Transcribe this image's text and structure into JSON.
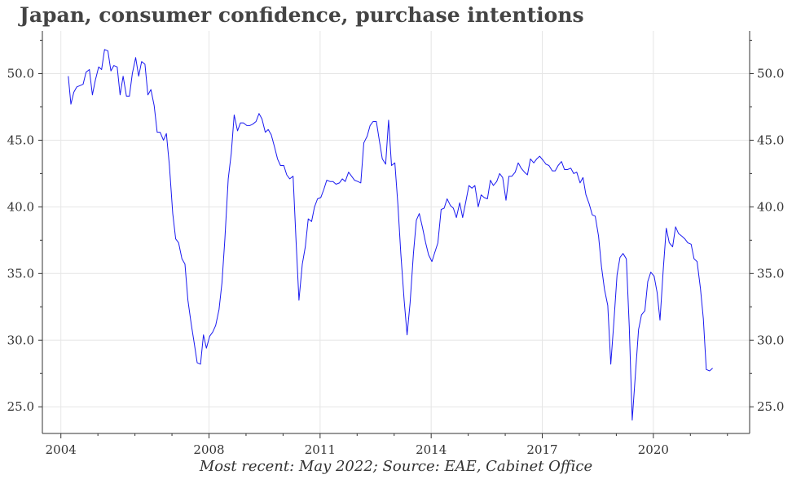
{
  "title": "Japan, consumer confidence, purchase intentions",
  "caption": "Most recent: May 2022; Source: EAE, Cabinet Office",
  "colors": {
    "line": "#1a1af0",
    "grid": "#e6e6e6",
    "axis": "#333333",
    "title": "#444444"
  },
  "chart_data": {
    "type": "line",
    "title": "Japan, consumer confidence, purchase intentions",
    "xlabel": "",
    "ylabel": "",
    "xlim": [
      2003.5,
      2022.6
    ],
    "ylim": [
      23.0,
      53.2
    ],
    "xticks": [
      2004,
      2008,
      2011,
      2014,
      2017,
      2020
    ],
    "x_tick_labels": [
      "2004",
      "2008",
      "2011",
      "2014",
      "2017",
      "2020"
    ],
    "yticks": [
      25.0,
      30.0,
      35.0,
      40.0,
      45.0,
      50.0
    ],
    "y_tick_labels": [
      "25.0",
      "30.0",
      "35.0",
      "40.0",
      "45.0",
      "50.0"
    ],
    "grid": true,
    "legend": "none",
    "series": [
      {
        "points": [
          [
            2004.2,
            49.8
          ],
          [
            2004.27,
            47.7
          ],
          [
            2004.35,
            48.6
          ],
          [
            2004.43,
            49.0
          ],
          [
            2004.52,
            49.1
          ],
          [
            2004.6,
            49.2
          ],
          [
            2004.68,
            50.1
          ],
          [
            2004.77,
            50.3
          ],
          [
            2004.85,
            48.4
          ],
          [
            2004.93,
            49.5
          ],
          [
            2005.02,
            50.5
          ],
          [
            2005.1,
            50.3
          ],
          [
            2005.18,
            51.8
          ],
          [
            2005.27,
            51.7
          ],
          [
            2005.35,
            50.2
          ],
          [
            2005.43,
            50.6
          ],
          [
            2005.52,
            50.5
          ],
          [
            2005.6,
            48.4
          ],
          [
            2005.68,
            49.8
          ],
          [
            2005.77,
            48.3
          ],
          [
            2005.85,
            48.3
          ],
          [
            2005.93,
            50.0
          ],
          [
            2006.02,
            51.2
          ],
          [
            2006.1,
            49.8
          ],
          [
            2006.18,
            50.9
          ],
          [
            2006.27,
            50.7
          ],
          [
            2006.35,
            48.4
          ],
          [
            2006.43,
            48.8
          ],
          [
            2006.52,
            47.6
          ],
          [
            2006.6,
            45.6
          ],
          [
            2006.68,
            45.6
          ],
          [
            2006.77,
            45.0
          ],
          [
            2006.85,
            45.5
          ],
          [
            2006.93,
            43.1
          ],
          [
            2007.02,
            39.5
          ],
          [
            2007.1,
            37.6
          ],
          [
            2007.18,
            37.3
          ],
          [
            2007.27,
            36.1
          ],
          [
            2007.35,
            35.7
          ],
          [
            2007.43,
            33.0
          ],
          [
            2007.52,
            31.2
          ],
          [
            2007.6,
            29.8
          ],
          [
            2007.68,
            28.3
          ],
          [
            2007.77,
            28.2
          ],
          [
            2007.85,
            30.4
          ],
          [
            2007.93,
            29.4
          ],
          [
            2008.02,
            30.3
          ],
          [
            2008.1,
            30.6
          ],
          [
            2008.18,
            31.1
          ],
          [
            2008.27,
            32.3
          ],
          [
            2008.35,
            34.3
          ],
          [
            2008.43,
            37.6
          ],
          [
            2008.52,
            42.1
          ],
          [
            2008.6,
            44.0
          ],
          [
            2008.68,
            46.9
          ],
          [
            2008.77,
            45.7
          ],
          [
            2008.85,
            46.3
          ],
          [
            2008.93,
            46.3
          ],
          [
            2009.02,
            46.1
          ],
          [
            2009.1,
            46.1
          ],
          [
            2009.18,
            46.2
          ],
          [
            2009.27,
            46.4
          ],
          [
            2009.35,
            47.0
          ],
          [
            2009.43,
            46.6
          ],
          [
            2009.52,
            45.6
          ],
          [
            2009.6,
            45.8
          ],
          [
            2009.68,
            45.4
          ],
          [
            2009.77,
            44.5
          ],
          [
            2009.85,
            43.6
          ],
          [
            2009.93,
            43.1
          ],
          [
            2010.02,
            43.1
          ],
          [
            2010.1,
            42.4
          ],
          [
            2010.18,
            42.1
          ],
          [
            2010.27,
            42.3
          ],
          [
            2010.35,
            37.5
          ],
          [
            2010.43,
            33.0
          ],
          [
            2010.52,
            35.7
          ],
          [
            2010.6,
            37.0
          ],
          [
            2010.68,
            39.1
          ],
          [
            2010.77,
            38.9
          ],
          [
            2010.85,
            40.0
          ],
          [
            2010.93,
            40.6
          ],
          [
            2011.02,
            40.7
          ],
          [
            2011.1,
            41.3
          ],
          [
            2011.18,
            42.0
          ],
          [
            2011.27,
            41.9
          ],
          [
            2011.35,
            41.9
          ],
          [
            2011.43,
            41.7
          ],
          [
            2011.52,
            41.8
          ],
          [
            2011.6,
            42.1
          ],
          [
            2011.68,
            41.9
          ],
          [
            2011.77,
            42.6
          ],
          [
            2011.85,
            42.3
          ],
          [
            2011.93,
            42.0
          ],
          [
            2012.02,
            41.9
          ],
          [
            2012.1,
            41.8
          ],
          [
            2012.18,
            44.8
          ],
          [
            2012.27,
            45.3
          ],
          [
            2012.35,
            46.1
          ],
          [
            2012.43,
            46.4
          ],
          [
            2012.52,
            46.4
          ],
          [
            2012.6,
            45.0
          ],
          [
            2012.68,
            43.6
          ],
          [
            2012.77,
            43.2
          ],
          [
            2012.85,
            46.5
          ],
          [
            2012.93,
            43.1
          ],
          [
            2013.02,
            43.3
          ],
          [
            2013.1,
            40.2
          ],
          [
            2013.18,
            36.5
          ],
          [
            2013.27,
            33.0
          ],
          [
            2013.35,
            30.4
          ],
          [
            2013.43,
            32.8
          ],
          [
            2013.52,
            36.5
          ],
          [
            2013.6,
            39.0
          ],
          [
            2013.68,
            39.5
          ],
          [
            2013.77,
            38.4
          ],
          [
            2013.85,
            37.3
          ],
          [
            2013.93,
            36.4
          ],
          [
            2014.02,
            35.9
          ],
          [
            2014.1,
            36.6
          ],
          [
            2014.18,
            37.3
          ],
          [
            2014.27,
            39.8
          ],
          [
            2014.35,
            39.9
          ],
          [
            2014.43,
            40.6
          ],
          [
            2014.52,
            40.1
          ],
          [
            2014.6,
            39.9
          ],
          [
            2014.68,
            39.2
          ],
          [
            2014.77,
            40.3
          ],
          [
            2014.85,
            39.2
          ],
          [
            2014.93,
            40.3
          ],
          [
            2015.02,
            41.6
          ],
          [
            2015.1,
            41.4
          ],
          [
            2015.18,
            41.6
          ],
          [
            2015.27,
            40.0
          ],
          [
            2015.35,
            40.9
          ],
          [
            2015.43,
            40.7
          ],
          [
            2015.52,
            40.6
          ],
          [
            2015.6,
            42.0
          ],
          [
            2015.68,
            41.6
          ],
          [
            2015.77,
            41.9
          ],
          [
            2015.85,
            42.5
          ],
          [
            2015.93,
            42.2
          ],
          [
            2016.02,
            40.5
          ],
          [
            2016.1,
            42.3
          ],
          [
            2016.18,
            42.3
          ],
          [
            2016.27,
            42.6
          ],
          [
            2016.35,
            43.3
          ],
          [
            2016.43,
            42.9
          ],
          [
            2016.52,
            42.6
          ],
          [
            2016.6,
            42.4
          ],
          [
            2016.68,
            43.6
          ],
          [
            2016.77,
            43.3
          ],
          [
            2016.85,
            43.6
          ],
          [
            2016.93,
            43.8
          ],
          [
            2017.02,
            43.5
          ],
          [
            2017.1,
            43.2
          ],
          [
            2017.18,
            43.1
          ],
          [
            2017.27,
            42.7
          ],
          [
            2017.35,
            42.7
          ],
          [
            2017.43,
            43.1
          ],
          [
            2017.52,
            43.4
          ],
          [
            2017.6,
            42.8
          ],
          [
            2017.68,
            42.8
          ],
          [
            2017.77,
            42.9
          ],
          [
            2017.85,
            42.5
          ],
          [
            2017.93,
            42.6
          ],
          [
            2018.02,
            41.8
          ],
          [
            2018.1,
            42.2
          ],
          [
            2018.18,
            40.9
          ],
          [
            2018.27,
            40.2
          ],
          [
            2018.35,
            39.4
          ],
          [
            2018.43,
            39.3
          ],
          [
            2018.52,
            37.8
          ],
          [
            2018.6,
            35.5
          ],
          [
            2018.68,
            33.8
          ],
          [
            2018.77,
            32.6
          ],
          [
            2018.85,
            28.2
          ],
          [
            2018.93,
            31.2
          ],
          [
            2019.02,
            34.9
          ],
          [
            2019.1,
            36.2
          ],
          [
            2019.18,
            36.5
          ],
          [
            2019.27,
            36.1
          ],
          [
            2019.35,
            31.0
          ],
          [
            2019.43,
            24.0
          ],
          [
            2019.52,
            27.6
          ],
          [
            2019.6,
            30.8
          ],
          [
            2019.68,
            31.9
          ],
          [
            2019.77,
            32.2
          ],
          [
            2019.85,
            34.4
          ],
          [
            2019.93,
            35.1
          ],
          [
            2020.02,
            34.8
          ],
          [
            2020.1,
            33.6
          ],
          [
            2020.18,
            31.5
          ],
          [
            2020.27,
            35.4
          ],
          [
            2020.35,
            38.4
          ],
          [
            2020.43,
            37.3
          ],
          [
            2020.52,
            37.0
          ],
          [
            2020.6,
            38.5
          ],
          [
            2020.68,
            38.0
          ],
          [
            2020.77,
            37.8
          ],
          [
            2020.85,
            37.6
          ],
          [
            2020.93,
            37.3
          ],
          [
            2021.02,
            37.2
          ],
          [
            2021.1,
            36.1
          ],
          [
            2021.18,
            35.9
          ],
          [
            2021.27,
            33.9
          ],
          [
            2021.35,
            31.6
          ],
          [
            2021.43,
            27.8
          ],
          [
            2021.52,
            27.7
          ],
          [
            2021.6,
            27.9
          ]
        ]
      }
    ]
  }
}
